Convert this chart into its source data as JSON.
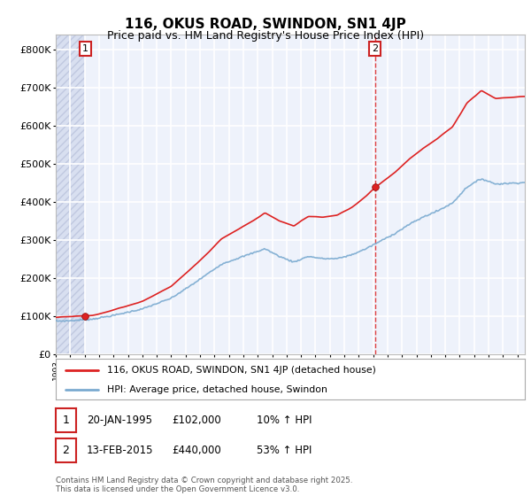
{
  "title": "116, OKUS ROAD, SWINDON, SN1 4JP",
  "subtitle": "Price paid vs. HM Land Registry's House Price Index (HPI)",
  "ylim": [
    0,
    840000
  ],
  "yticks": [
    0,
    100000,
    200000,
    300000,
    400000,
    500000,
    600000,
    700000,
    800000
  ],
  "ytick_labels": [
    "£0",
    "£100K",
    "£200K",
    "£300K",
    "£400K",
    "£500K",
    "£600K",
    "£700K",
    "£800K"
  ],
  "background_color": "#ffffff",
  "plot_bg_color": "#eef2fb",
  "grid_color": "#ffffff",
  "hatch_color": "#d8dff0",
  "sale1_year_f": 1995.05,
  "sale1_price": 102000,
  "sale1_label": "1",
  "sale2_year_f": 2015.12,
  "sale2_price": 440000,
  "sale2_label": "2",
  "legend_line1": "116, OKUS ROAD, SWINDON, SN1 4JP (detached house)",
  "legend_line2": "HPI: Average price, detached house, Swindon",
  "table_row1": [
    "1",
    "20-JAN-1995",
    "£102,000",
    "10% ↑ HPI"
  ],
  "table_row2": [
    "2",
    "13-FEB-2015",
    "£440,000",
    "53% ↑ HPI"
  ],
  "footer": "Contains HM Land Registry data © Crown copyright and database right 2025.\nThis data is licensed under the Open Government Licence v3.0.",
  "line_color_red": "#dd2222",
  "line_color_blue": "#7aaad0",
  "xmin": 1993.0,
  "xmax": 2025.5
}
